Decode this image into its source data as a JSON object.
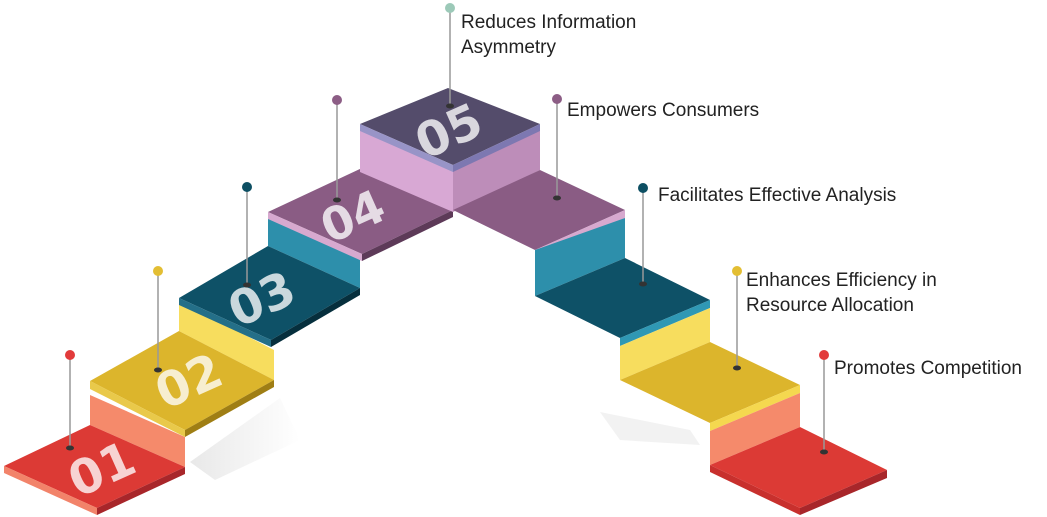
{
  "steps": [
    {
      "number": "01",
      "label_lines": [
        "Promotes Competition"
      ],
      "color_top": "#dc3a35",
      "color_front": "#f58a6b",
      "pin_color": "#e23b3b"
    },
    {
      "number": "02",
      "label_lines": [
        "Enhances Efficiency in",
        "Resource Allocation"
      ],
      "color_top": "#dcb52c",
      "color_front": "#f7dd5e",
      "pin_color": "#e3be33"
    },
    {
      "number": "03",
      "label_lines": [
        "Facilitates Effective Analysis"
      ],
      "color_top": "#0e5167",
      "color_front": "#2d8fab",
      "pin_color": "#0d4f63"
    },
    {
      "number": "04",
      "label_lines": [
        "Empowers Consumers"
      ],
      "color_top": "#8a5c84",
      "color_front": "#d9a7d2",
      "pin_color": "#8c5d85"
    },
    {
      "number": "05",
      "label_lines": [
        "Reduces Information",
        "Asymmetry"
      ],
      "color_top": "#544c6b",
      "color_front": "#d8a8d4",
      "pin_color": "#9cc9b8"
    }
  ]
}
